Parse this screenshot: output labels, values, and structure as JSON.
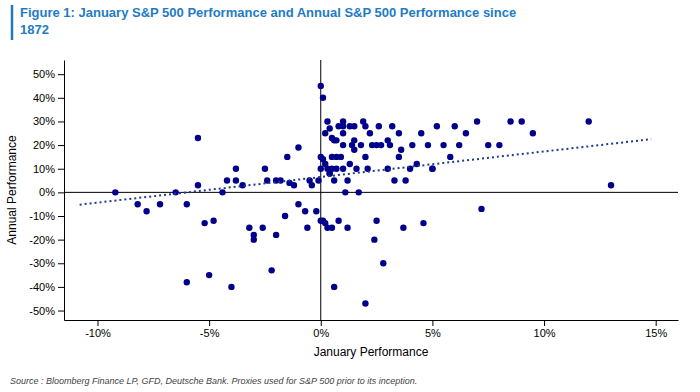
{
  "chart_data": {
    "type": "scatter",
    "title": [
      "Figure 1: January S&P 500 Performance and Annual S&P 500 Performance since",
      "1872"
    ],
    "xlabel": "January Performance",
    "ylabel": "Annual Performance",
    "source": "Source : Bloomberg Finance LP, GFD, Deutsche Bank. Proxies used for S&P 500 prior to its inception.",
    "xlim": [
      -0.115,
      0.16
    ],
    "ylim": [
      -0.54,
      0.56
    ],
    "xticks": [
      {
        "value": -0.1,
        "label": "-10%"
      },
      {
        "value": -0.05,
        "label": "-5%"
      },
      {
        "value": 0.0,
        "label": "0%"
      },
      {
        "value": 0.05,
        "label": "5%"
      },
      {
        "value": 0.1,
        "label": "10%"
      },
      {
        "value": 0.15,
        "label": "15%"
      }
    ],
    "yticks": [
      {
        "value": -0.5,
        "label": "-50%"
      },
      {
        "value": -0.4,
        "label": "-40%"
      },
      {
        "value": -0.3,
        "label": "-30%"
      },
      {
        "value": -0.2,
        "label": "-20%"
      },
      {
        "value": -0.1,
        "label": "-10%"
      },
      {
        "value": 0.0,
        "label": "0%"
      },
      {
        "value": 0.1,
        "label": "10%"
      },
      {
        "value": 0.2,
        "label": "20%"
      },
      {
        "value": 0.3,
        "label": "30%"
      },
      {
        "value": 0.4,
        "label": "40%"
      },
      {
        "value": 0.5,
        "label": "50%"
      }
    ],
    "grid": false,
    "series": [
      {
        "type": "scatter",
        "color": "#00008B",
        "x": [
          -0.092,
          -0.072,
          -0.065,
          -0.06,
          -0.055,
          -0.052,
          -0.048,
          -0.044,
          -0.04,
          -0.038,
          -0.035,
          -0.032,
          -0.03,
          -0.026,
          -0.024,
          -0.022,
          -0.02,
          -0.018,
          -0.016,
          -0.014,
          -0.012,
          -0.01,
          -0.007,
          -0.006,
          -0.004,
          -0.002,
          -0.001,
          0.0,
          0.0,
          0.0,
          0.0,
          0.001,
          0.001,
          0.002,
          0.002,
          0.003,
          0.003,
          0.004,
          0.004,
          0.005,
          0.005,
          0.005,
          0.006,
          0.006,
          0.007,
          0.007,
          0.008,
          0.009,
          0.01,
          0.01,
          0.01,
          0.01,
          0.011,
          0.012,
          0.013,
          0.014,
          0.015,
          0.015,
          0.016,
          0.017,
          0.018,
          0.019,
          0.02,
          0.02,
          0.021,
          0.022,
          0.023,
          0.024,
          0.025,
          0.026,
          0.027,
          0.028,
          0.03,
          0.031,
          0.032,
          0.033,
          0.035,
          0.036,
          0.037,
          0.038,
          0.04,
          0.041,
          0.043,
          0.045,
          0.046,
          0.048,
          0.05,
          0.052,
          0.055,
          0.058,
          0.06,
          0.062,
          0.065,
          0.07,
          0.072,
          0.075,
          0.08,
          0.085,
          0.09,
          0.095,
          -0.082,
          -0.078,
          -0.06,
          -0.055,
          -0.05,
          -0.042,
          -0.038,
          -0.03,
          -0.025,
          -0.02,
          -0.015,
          -0.01,
          -0.005,
          0.001,
          0.002,
          0.003,
          0.004,
          0.005,
          0.006,
          0.007,
          0.008,
          0.01,
          0.012,
          0.013,
          0.015,
          0.02,
          0.025,
          0.03,
          0.035,
          0.05,
          0.12,
          0.13
        ],
        "values": [
          0.0,
          -0.05,
          0.0,
          -0.05,
          0.23,
          -0.13,
          -0.12,
          0.0,
          -0.4,
          0.1,
          0.03,
          -0.15,
          -0.2,
          -0.15,
          0.05,
          -0.33,
          -0.18,
          0.05,
          -0.1,
          0.04,
          0.03,
          0.19,
          -0.08,
          -0.15,
          0.03,
          -0.08,
          0.05,
          0.15,
          0.1,
          -0.12,
          0.45,
          0.4,
          -0.12,
          0.25,
          0.12,
          -0.15,
          0.1,
          0.27,
          0.08,
          0.15,
          0.23,
          -0.15,
          0.05,
          -0.4,
          0.15,
          0.1,
          -0.12,
          0.15,
          0.25,
          0.2,
          0.3,
          0.1,
          0.0,
          -0.15,
          0.12,
          0.2,
          0.18,
          0.28,
          0.1,
          0.0,
          0.2,
          0.3,
          0.15,
          -0.47,
          0.1,
          0.25,
          0.2,
          -0.2,
          -0.12,
          0.28,
          0.2,
          -0.3,
          0.1,
          0.2,
          0.28,
          0.05,
          0.25,
          0.18,
          -0.15,
          0.05,
          0.1,
          0.2,
          0.12,
          0.25,
          -0.13,
          0.2,
          0.1,
          0.28,
          0.2,
          0.15,
          0.28,
          0.2,
          0.25,
          0.3,
          -0.07,
          0.2,
          0.2,
          0.3,
          0.3,
          0.25,
          -0.05,
          -0.08,
          -0.38,
          0.03,
          -0.35,
          0.05,
          0.05,
          -0.18,
          0.1,
          0.05,
          0.15,
          -0.05,
          0.05,
          0.14,
          -0.13,
          0.3,
          0.08,
          0.1,
          0.22,
          0.22,
          0.28,
          0.28,
          0.05,
          0.28,
          0.22,
          0.28,
          0.2,
          0.22,
          0.15,
          0.1,
          0.3,
          0.03
        ]
      },
      {
        "type": "line",
        "color": "#1F3A8F",
        "line_style": "dotted",
        "x": [
          -0.108,
          0.148
        ],
        "values": [
          -0.052,
          0.225
        ]
      }
    ]
  }
}
